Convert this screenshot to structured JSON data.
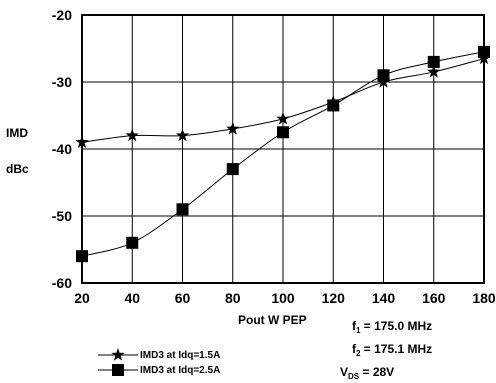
{
  "chart_data": {
    "type": "line",
    "xlabel": "Pout W PEP",
    "ylabel": [
      "IMD",
      "dBc"
    ],
    "xlim": [
      20,
      180
    ],
    "ylim": [
      -60,
      -20
    ],
    "xticks": [
      "20",
      "40",
      "60",
      "80",
      "100",
      "120",
      "140",
      "160",
      "180"
    ],
    "yticks": [
      "-20",
      "-30",
      "-40",
      "-50",
      "-60"
    ],
    "grid": true,
    "legend_position": "bottom-left",
    "series": [
      {
        "name": "IMD3 at Idq=1.5A",
        "marker": "star",
        "x": [
          20,
          40,
          60,
          80,
          100,
          120,
          140,
          160,
          180
        ],
        "y": [
          -39,
          -38,
          -38,
          -37,
          -35.5,
          -33,
          -30,
          -28.5,
          -26.5
        ]
      },
      {
        "name": "IMD3 at Idq=2.5A",
        "marker": "square",
        "x": [
          20,
          40,
          60,
          80,
          100,
          120,
          140,
          160,
          180
        ],
        "y": [
          -56,
          -54,
          -49,
          -43,
          -37.5,
          -33.5,
          -29,
          -27,
          -25.5
        ]
      }
    ],
    "annotations": {
      "f1": {
        "sym": "f",
        "sub": "1",
        "text": " = 175.0 MHz"
      },
      "f2": {
        "sym": "f",
        "sub": "2",
        "text": " = 175.1 MHz"
      },
      "vds": {
        "sym": "V",
        "sub": "DS",
        "text": " = 28V"
      }
    }
  }
}
